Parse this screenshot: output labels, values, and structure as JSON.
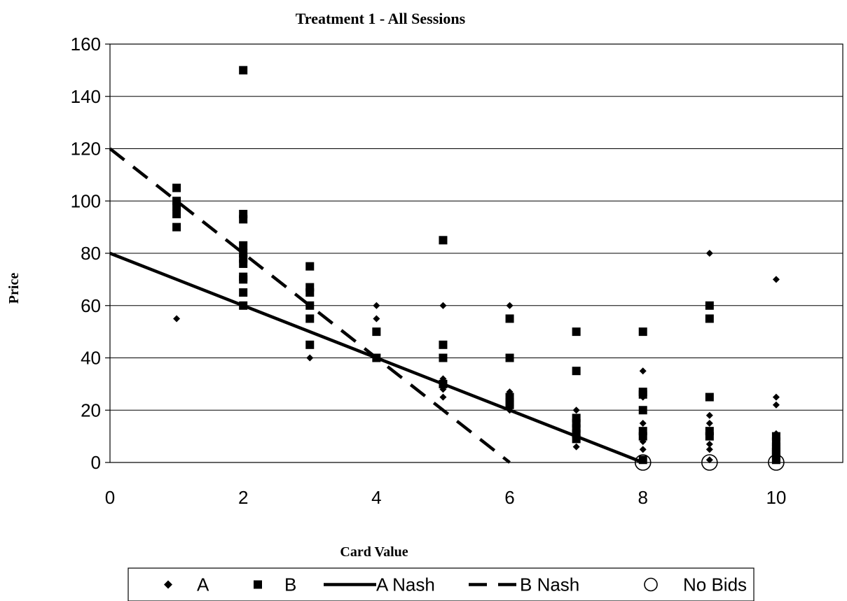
{
  "chart_data": {
    "type": "scatter",
    "title": "Treatment 1 - All Sessions",
    "xlabel": "Card Value",
    "ylabel": "Price",
    "xlim": [
      0,
      11
    ],
    "ylim": [
      0,
      160
    ],
    "x_ticks": [
      0,
      2,
      4,
      6,
      8,
      10
    ],
    "y_ticks": [
      0,
      20,
      40,
      60,
      80,
      100,
      120,
      140,
      160
    ],
    "grid": "horizontal",
    "legend_position": "bottom",
    "series": [
      {
        "name": "A",
        "type": "scatter",
        "marker": "diamond",
        "points": [
          [
            1,
            55
          ],
          [
            2,
            60
          ],
          [
            3,
            40
          ],
          [
            4,
            60
          ],
          [
            4,
            55
          ],
          [
            4,
            40
          ],
          [
            5,
            60
          ],
          [
            5,
            32
          ],
          [
            5,
            30
          ],
          [
            5,
            28
          ],
          [
            5,
            25
          ],
          [
            6,
            60
          ],
          [
            6,
            27
          ],
          [
            6,
            25
          ],
          [
            6,
            22
          ],
          [
            6,
            20
          ],
          [
            7,
            20
          ],
          [
            7,
            15
          ],
          [
            7,
            10
          ],
          [
            7,
            6
          ],
          [
            8,
            35
          ],
          [
            8,
            25
          ],
          [
            8,
            15
          ],
          [
            8,
            12
          ],
          [
            8,
            8
          ],
          [
            8,
            5
          ],
          [
            8,
            1
          ],
          [
            9,
            80
          ],
          [
            9,
            18
          ],
          [
            9,
            15
          ],
          [
            9,
            12
          ],
          [
            9,
            7
          ],
          [
            9,
            5
          ],
          [
            9,
            1
          ],
          [
            10,
            70
          ],
          [
            10,
            25
          ],
          [
            10,
            22
          ],
          [
            10,
            11
          ],
          [
            10,
            8
          ],
          [
            10,
            5
          ],
          [
            10,
            3
          ],
          [
            10,
            1
          ]
        ]
      },
      {
        "name": "B",
        "type": "scatter",
        "marker": "square",
        "points": [
          [
            1,
            105
          ],
          [
            1,
            100
          ],
          [
            1,
            98
          ],
          [
            1,
            95
          ],
          [
            1,
            90
          ],
          [
            2,
            150
          ],
          [
            2,
            95
          ],
          [
            2,
            93
          ],
          [
            2,
            83
          ],
          [
            2,
            80
          ],
          [
            2,
            78
          ],
          [
            2,
            76
          ],
          [
            2,
            71
          ],
          [
            2,
            70
          ],
          [
            2,
            65
          ],
          [
            2,
            60
          ],
          [
            3,
            75
          ],
          [
            3,
            67
          ],
          [
            3,
            65
          ],
          [
            3,
            60
          ],
          [
            3,
            55
          ],
          [
            3,
            45
          ],
          [
            4,
            50
          ],
          [
            4,
            40
          ],
          [
            5,
            85
          ],
          [
            5,
            45
          ],
          [
            5,
            40
          ],
          [
            5,
            30
          ],
          [
            6,
            55
          ],
          [
            6,
            40
          ],
          [
            6,
            25
          ],
          [
            6,
            23
          ],
          [
            6,
            22
          ],
          [
            7,
            50
          ],
          [
            7,
            35
          ],
          [
            7,
            17
          ],
          [
            7,
            15
          ],
          [
            7,
            13
          ],
          [
            7,
            11
          ],
          [
            7,
            9
          ],
          [
            8,
            50
          ],
          [
            8,
            27
          ],
          [
            8,
            26
          ],
          [
            8,
            20
          ],
          [
            8,
            12
          ],
          [
            8,
            10
          ],
          [
            8,
            1
          ],
          [
            9,
            60
          ],
          [
            9,
            55
          ],
          [
            9,
            25
          ],
          [
            9,
            12
          ],
          [
            9,
            10
          ],
          [
            10,
            10
          ],
          [
            10,
            8
          ],
          [
            10,
            6
          ],
          [
            10,
            5
          ],
          [
            10,
            4
          ],
          [
            10,
            3
          ],
          [
            10,
            2
          ],
          [
            10,
            1
          ]
        ]
      },
      {
        "name": "A Nash",
        "type": "line",
        "style": "solid",
        "points": [
          [
            0,
            80
          ],
          [
            8,
            0
          ]
        ]
      },
      {
        "name": "B Nash",
        "type": "line",
        "style": "dashed",
        "points": [
          [
            0,
            120
          ],
          [
            6,
            0
          ]
        ]
      },
      {
        "name": "No Bids",
        "type": "scatter",
        "marker": "circle",
        "points": [
          [
            8,
            0
          ],
          [
            9,
            0
          ],
          [
            10,
            0
          ]
        ]
      }
    ]
  }
}
